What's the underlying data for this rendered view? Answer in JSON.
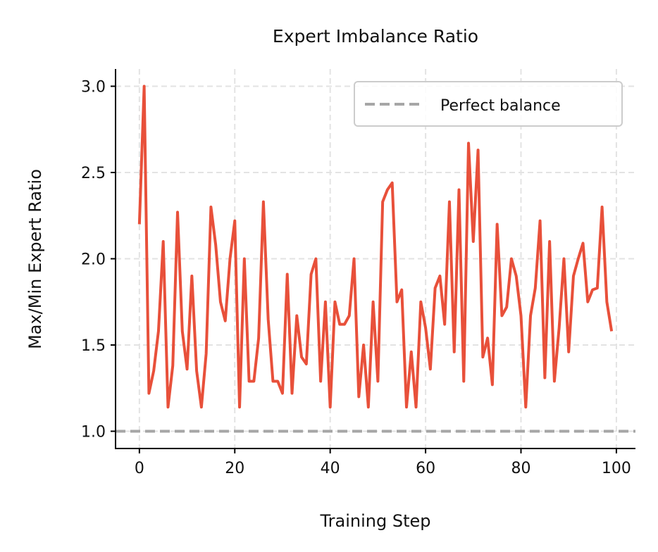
{
  "chart_data": {
    "type": "line",
    "title": "Expert Imbalance Ratio",
    "xlabel": "Training Step",
    "ylabel": "Max/Min Expert Ratio",
    "xlim": [
      -5,
      104
    ],
    "ylim": [
      0.9,
      3.1
    ],
    "xticks": [
      0,
      20,
      40,
      60,
      80,
      100
    ],
    "yticks": [
      1.0,
      1.5,
      2.0,
      2.5,
      3.0
    ],
    "ytick_labels": [
      "1.0",
      "1.5",
      "2.0",
      "2.5",
      "3.0"
    ],
    "grid": true,
    "legend_position": "top-right",
    "line_color": "#e8503a",
    "reference": {
      "name": "Perfect balance",
      "y": 1.0,
      "color": "#a6a6a6",
      "style": "dashed"
    },
    "x": [
      0,
      1,
      2,
      3,
      4,
      5,
      6,
      7,
      8,
      9,
      10,
      11,
      12,
      13,
      14,
      15,
      16,
      17,
      18,
      19,
      20,
      21,
      22,
      23,
      24,
      25,
      26,
      27,
      28,
      29,
      30,
      31,
      32,
      33,
      34,
      35,
      36,
      37,
      38,
      39,
      40,
      41,
      42,
      43,
      44,
      45,
      46,
      47,
      48,
      49,
      50,
      51,
      52,
      53,
      54,
      55,
      56,
      57,
      58,
      59,
      60,
      61,
      62,
      63,
      64,
      65,
      66,
      67,
      68,
      69,
      70,
      71,
      72,
      73,
      74,
      75,
      76,
      77,
      78,
      79,
      80,
      81,
      82,
      83,
      84,
      85,
      86,
      87,
      88,
      89,
      90,
      91,
      92,
      93,
      94,
      95,
      96,
      97,
      98,
      99
    ],
    "values": [
      2.2,
      3.0,
      1.22,
      1.35,
      1.58,
      2.1,
      1.14,
      1.38,
      2.27,
      1.58,
      1.36,
      1.9,
      1.35,
      1.14,
      1.45,
      2.3,
      2.08,
      1.75,
      1.64,
      2.0,
      2.22,
      1.14,
      2.0,
      1.29,
      1.29,
      1.54,
      2.33,
      1.65,
      1.29,
      1.29,
      1.22,
      1.91,
      1.22,
      1.67,
      1.43,
      1.39,
      1.91,
      2.0,
      1.29,
      1.75,
      1.14,
      1.75,
      1.62,
      1.62,
      1.67,
      2.0,
      1.2,
      1.5,
      1.14,
      1.75,
      1.29,
      2.33,
      2.4,
      2.44,
      1.75,
      1.82,
      1.14,
      1.46,
      1.14,
      1.75,
      1.6,
      1.36,
      1.83,
      1.9,
      1.62,
      2.33,
      1.46,
      2.4,
      1.29,
      2.67,
      2.1,
      2.63,
      1.43,
      1.54,
      1.27,
      2.2,
      1.67,
      1.72,
      2.0,
      1.9,
      1.67,
      1.14,
      1.67,
      1.83,
      2.22,
      1.31,
      2.1,
      1.29,
      1.6,
      2.0,
      1.46,
      1.9,
      2.0,
      2.09,
      1.75,
      1.82,
      1.83,
      2.3,
      1.75,
      1.58
    ]
  }
}
